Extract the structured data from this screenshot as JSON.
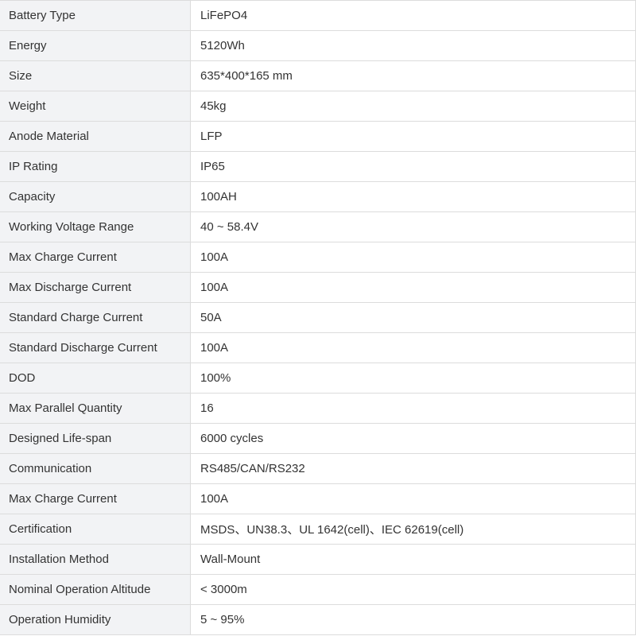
{
  "specs": [
    {
      "label": "Battery Type",
      "value": "LiFePO4"
    },
    {
      "label": "Energy",
      "value": "5120Wh"
    },
    {
      "label": "Size",
      "value": "635*400*165 mm"
    },
    {
      "label": "Weight",
      "value": "45kg"
    },
    {
      "label": "Anode Material",
      "value": "LFP"
    },
    {
      "label": "IP Rating",
      "value": "IP65"
    },
    {
      "label": "Capacity",
      "value": "100AH"
    },
    {
      "label": "Working Voltage Range",
      "value": "40 ~ 58.4V"
    },
    {
      "label": "Max Charge Current",
      "value": "100A"
    },
    {
      "label": "Max Discharge Current",
      "value": "100A"
    },
    {
      "label": "Standard Charge Current",
      "value": "50A"
    },
    {
      "label": "Standard Discharge Current",
      "value": "100A"
    },
    {
      "label": "DOD",
      "value": "100%"
    },
    {
      "label": "Max Parallel Quantity",
      "value": "16"
    },
    {
      "label": "Designed Life-span",
      "value": "6000 cycles"
    },
    {
      "label": "Communication",
      "value": "RS485/CAN/RS232"
    },
    {
      "label": "Max Charge Current",
      "value": "100A"
    },
    {
      "label": "Certification",
      "value": "MSDS、UN38.3、UL 1642(cell)、IEC 62619(cell)"
    },
    {
      "label": "Installation Method",
      "value": "Wall-Mount"
    },
    {
      "label": "Nominal Operation Altitude",
      "value": " < 3000m"
    },
    {
      "label": "Operation Humidity",
      "value": "5 ~ 95%"
    }
  ]
}
